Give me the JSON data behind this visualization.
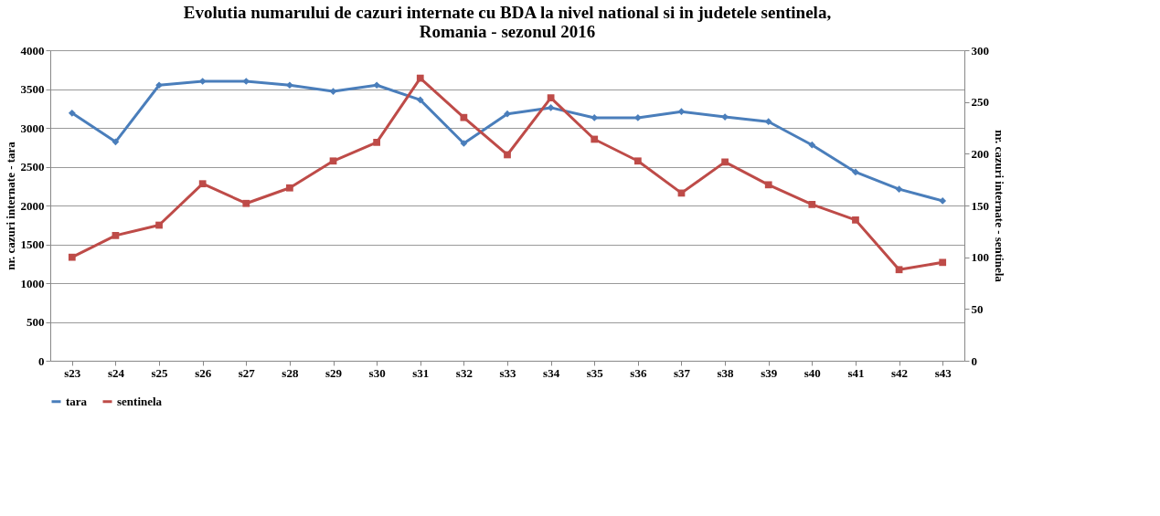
{
  "chart_data": {
    "type": "line",
    "title": "Evolutia numarului de cazuri internate cu BDA la nivel national si in judetele sentinela, Romania - sezonul 2016",
    "ylabel": "nr. cazuri internate - tara",
    "y2label": "nr. cazuri internate - sentinela",
    "categories": [
      "s23",
      "s24",
      "s25",
      "s26",
      "s27",
      "s28",
      "s29",
      "s30",
      "s31",
      "s32",
      "s33",
      "s34",
      "s35",
      "s36",
      "s37",
      "s38",
      "s39",
      "s40",
      "s41",
      "s42",
      "s43"
    ],
    "series": [
      {
        "name": "tara",
        "color": "#4a7ebb",
        "marker": "diamond",
        "values": [
          3190,
          2820,
          3550,
          3600,
          3600,
          3550,
          3470,
          3550,
          3360,
          2800,
          3180,
          3260,
          3130,
          3130,
          3210,
          3140,
          3080,
          2780,
          2430,
          2210,
          2060
        ]
      },
      {
        "name": "sentinela",
        "color": "#be4b48",
        "marker": "square",
        "axis": "y2",
        "values": [
          100,
          121,
          131,
          171,
          152,
          167,
          193,
          211,
          273,
          235,
          199,
          254,
          214,
          193,
          162,
          192,
          170,
          151,
          136,
          88,
          95
        ]
      }
    ],
    "ylim": [
      0,
      4000
    ],
    "yticks": [
      0,
      500,
      1000,
      1500,
      2000,
      2500,
      3000,
      3500,
      4000
    ],
    "y2lim": [
      0,
      300
    ],
    "y2ticks": [
      0,
      50,
      100,
      150,
      200,
      250,
      300
    ],
    "grid": "y",
    "legend": "bottom",
    "line_style": "solid"
  }
}
